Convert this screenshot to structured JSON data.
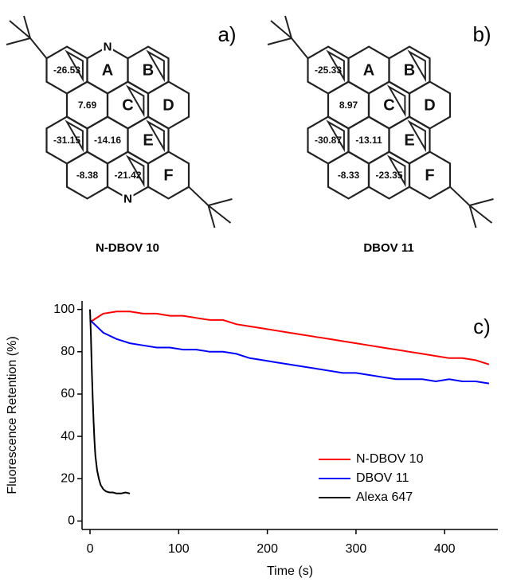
{
  "panels": [
    {
      "label": "a)",
      "caption": "N-DBOV 10",
      "rings": [
        "-26.53",
        "A",
        "B",
        "7.69",
        "C",
        "D",
        "-31.15",
        "-14.16",
        "E",
        "-8.38",
        "-21.42",
        "F"
      ],
      "atoms": [
        "N",
        "N"
      ]
    },
    {
      "label": "b)",
      "caption": "DBOV 11",
      "rings": [
        "-25.33",
        "A",
        "B",
        "8.97",
        "C",
        "D",
        "-30.87",
        "-13.11",
        "E",
        "-8.33",
        "-23.35",
        "F"
      ]
    }
  ],
  "chart_data": {
    "type": "line",
    "label": "c)",
    "x_label": "Time (s)",
    "y_label": "Fluorescence Retention (%)",
    "xlim": [
      -9,
      460
    ],
    "ylim": [
      -4,
      104
    ],
    "xticks": [
      0,
      100,
      200,
      300,
      400
    ],
    "yticks": [
      0,
      20,
      40,
      60,
      80,
      100
    ],
    "series": [
      {
        "name": "N-DBOV 10",
        "color": "#ff0000",
        "x": [
          0,
          15,
          30,
          45,
          60,
          75,
          90,
          105,
          120,
          135,
          150,
          165,
          180,
          195,
          210,
          225,
          240,
          255,
          270,
          285,
          300,
          315,
          330,
          345,
          360,
          375,
          390,
          405,
          420,
          435,
          450
        ],
        "values": [
          94,
          98,
          99,
          99,
          98,
          98,
          97,
          97,
          96,
          95,
          95,
          93,
          92,
          91,
          90,
          89,
          88,
          87,
          86,
          85,
          84,
          83,
          82,
          81,
          80,
          79,
          78,
          77,
          77,
          76,
          74
        ]
      },
      {
        "name": "DBOV 11",
        "color": "#0000ff",
        "x": [
          0,
          15,
          30,
          45,
          60,
          75,
          90,
          105,
          120,
          135,
          150,
          165,
          180,
          195,
          210,
          225,
          240,
          255,
          270,
          285,
          300,
          315,
          330,
          345,
          360,
          375,
          390,
          405,
          420,
          435,
          450
        ],
        "values": [
          95,
          89,
          86,
          84,
          83,
          82,
          82,
          81,
          81,
          80,
          80,
          79,
          77,
          76,
          75,
          74,
          73,
          72,
          71,
          70,
          70,
          69,
          68,
          67,
          67,
          67,
          66,
          67,
          66,
          66,
          65
        ]
      },
      {
        "name": "Alexa 647",
        "color": "#000000",
        "x": [
          0,
          1,
          2,
          3,
          4,
          5,
          6,
          8,
          10,
          12,
          15,
          18,
          22,
          26,
          30,
          35,
          40,
          45
        ],
        "values": [
          100,
          88,
          72,
          58,
          47,
          38,
          31,
          24,
          20,
          17,
          15,
          14,
          13.5,
          13.5,
          13,
          13,
          13.5,
          13
        ]
      }
    ]
  }
}
